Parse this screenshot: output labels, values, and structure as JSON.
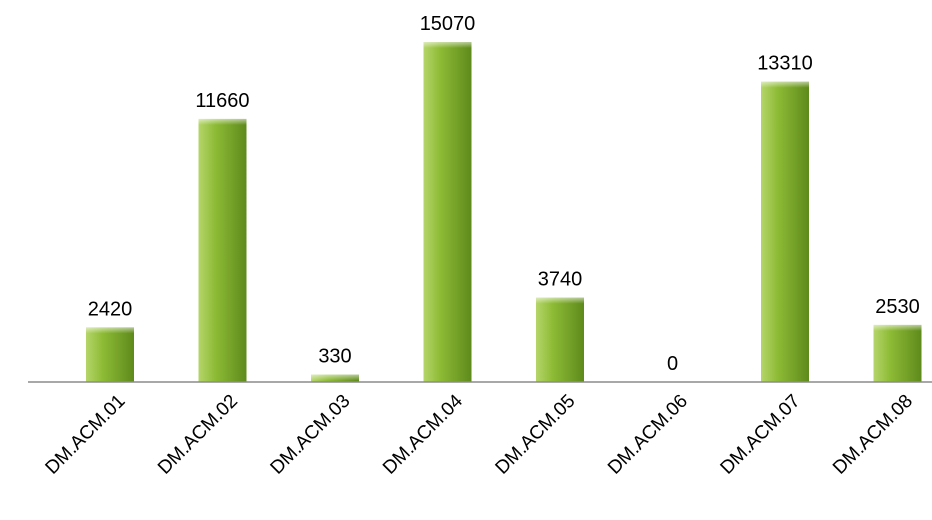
{
  "chart_data": {
    "type": "bar",
    "categories": [
      "DM.ACM.01",
      "DM.ACM.02",
      "DM.ACM.03",
      "DM.ACM.04",
      "DM.ACM.05",
      "DM.ACM.06",
      "DM.ACM.07",
      "DM.ACM.08"
    ],
    "values": [
      2420,
      11660,
      330,
      15070,
      3740,
      0,
      13310,
      2530
    ],
    "data_labels": [
      "2420",
      "11660",
      "330",
      "15070",
      "3740",
      "0",
      "13310",
      "2530"
    ],
    "ylim": [
      0,
      15070
    ],
    "grid": false,
    "legend": "none",
    "colors": {
      "bar_light": "#b5d56a",
      "bar_mid": "#8dbb35",
      "bar_dark": "#5e8a1c",
      "axis": "#8c8c8c",
      "text": "#000000"
    }
  }
}
